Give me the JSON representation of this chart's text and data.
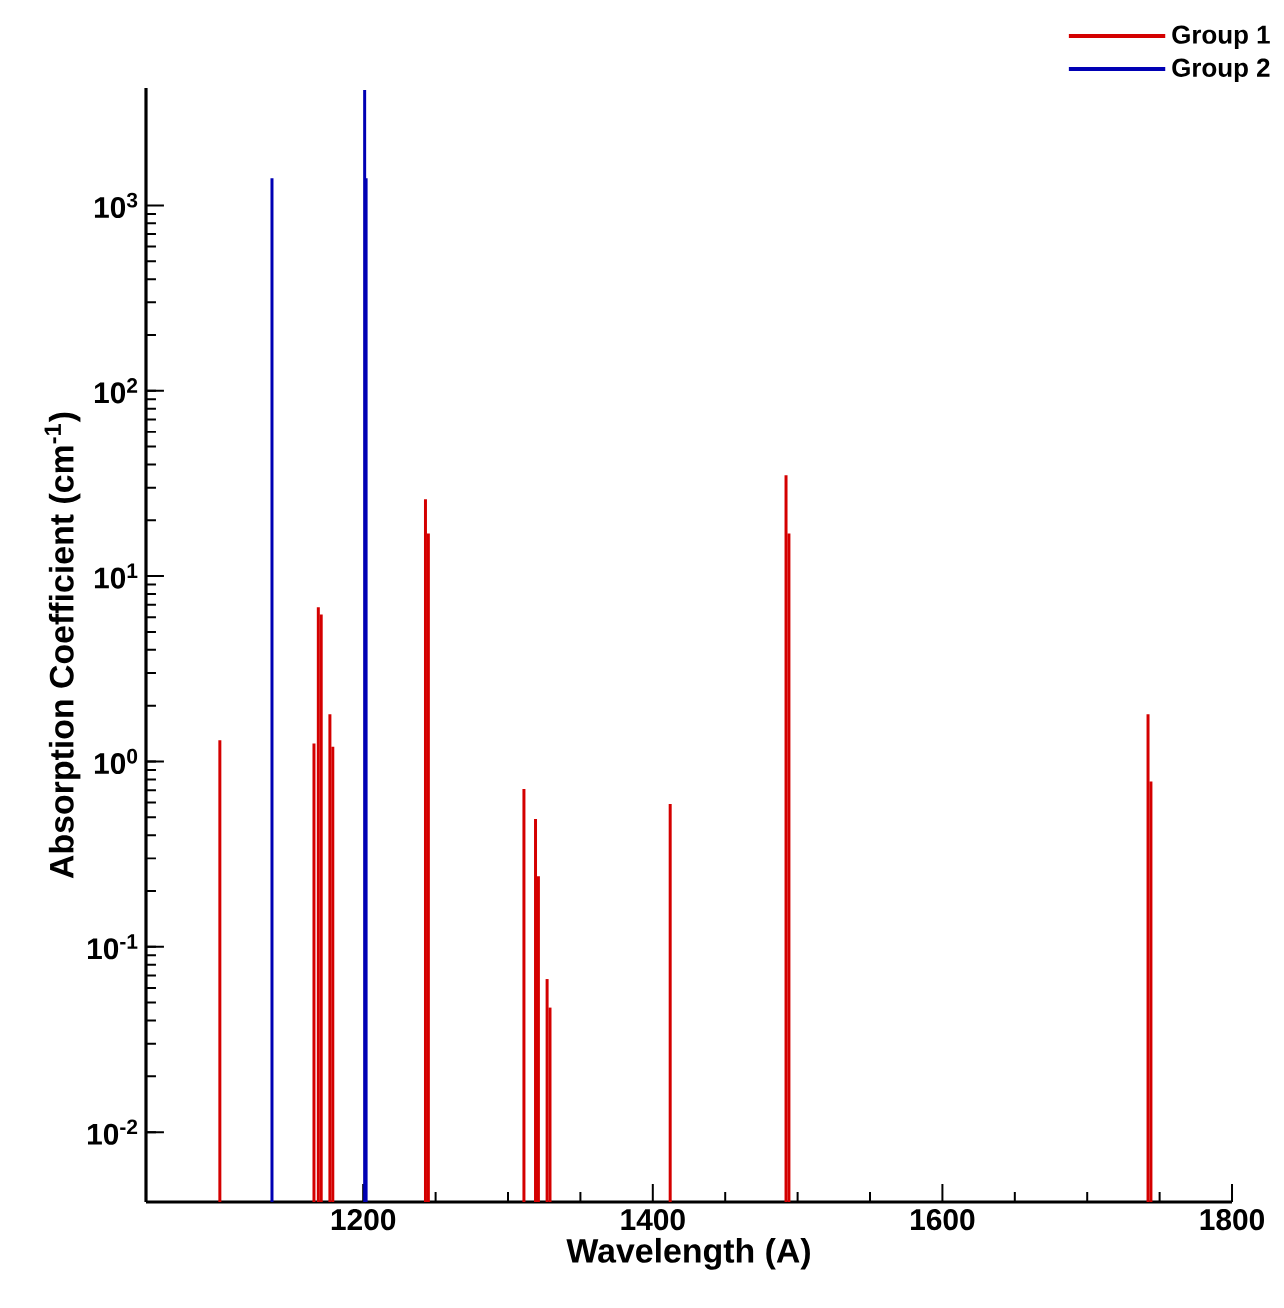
{
  "chart_data": {
    "type": "bar",
    "xlabel": "Wavelength (A)",
    "ylabel": "Absorption Coefficient (cm$^{-1}$)",
    "xlim": [
      1050,
      1800
    ],
    "xticks": [
      1200,
      1400,
      1600,
      1800
    ],
    "ylim": [
      0.0042,
      4300
    ],
    "log": "y",
    "yticks": [
      {
        "value": 0.01,
        "label": "10$^{-2}$"
      },
      {
        "value": 0.1,
        "label": "10$^{-1}$"
      },
      {
        "value": 1,
        "label": "10$^{0}$"
      },
      {
        "value": 10,
        "label": "10$^{1}$"
      },
      {
        "value": 100,
        "label": "10$^{2}$"
      },
      {
        "value": 1000,
        "label": "10$^{3}$"
      }
    ],
    "legend": "top right",
    "series": [
      {
        "name": "Group 1",
        "color": "#d40000",
        "x": [
          1101,
          1166,
          1169,
          1171,
          1177,
          1179,
          1243,
          1245,
          1311,
          1319,
          1321,
          1327,
          1329,
          1412,
          1492,
          1494,
          1742,
          1744
        ],
        "values": [
          1.3,
          1.25,
          6.8,
          6.2,
          1.8,
          1.2,
          26,
          17,
          0.71,
          0.49,
          0.24,
          0.067,
          0.047,
          0.59,
          35,
          17,
          1.8,
          0.78
        ]
      },
      {
        "name": "Group 2",
        "color": "#0000b4",
        "x": [
          1137,
          1201,
          1202
        ],
        "values": [
          1400,
          4200,
          1400
        ]
      }
    ]
  }
}
